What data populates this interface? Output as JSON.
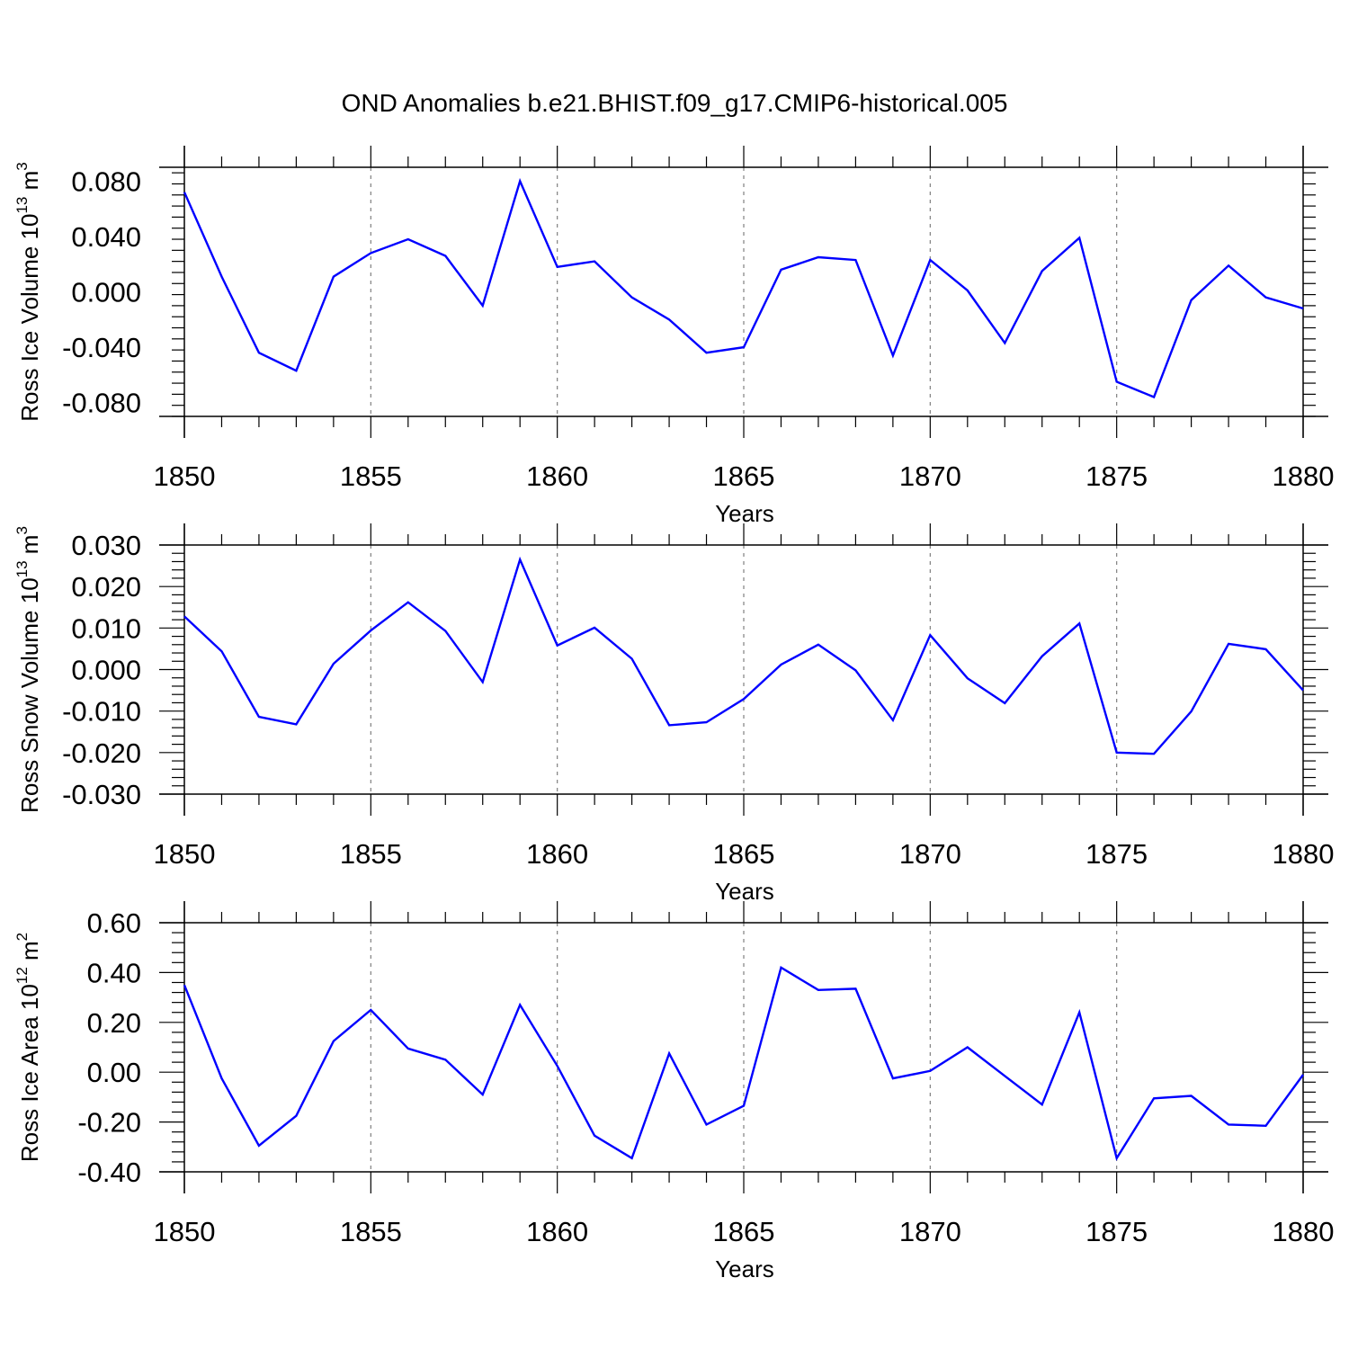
{
  "title": "OND Anomalies b.e21.BHIST.f09_g17.CMIP6-historical.005",
  "colors": {
    "line": "#0000ff",
    "axis": "#000000",
    "grid": "#808080"
  },
  "chart_data": [
    {
      "type": "line",
      "ylabel": {
        "text": "Ross Ice Volume 10",
        "sup": "13",
        "unit": " m",
        "unit_sup": "3"
      },
      "xlabel": "Years",
      "xlim": [
        1850,
        1880
      ],
      "ylim": [
        -0.09,
        0.09
      ],
      "yticks": [
        -0.08,
        -0.04,
        0.0,
        0.04,
        0.08
      ],
      "ytick_labels": [
        "-0.080",
        "-0.040",
        "0.000",
        "0.040",
        "0.080"
      ],
      "xticks": [
        1850,
        1855,
        1860,
        1865,
        1870,
        1875,
        1880
      ],
      "xtick_labels": [
        "1850",
        "1855",
        "1860",
        "1865",
        "1870",
        "1875",
        "1880"
      ],
      "x": [
        1850,
        1851,
        1852,
        1853,
        1854,
        1855,
        1856,
        1857,
        1858,
        1859,
        1860,
        1861,
        1862,
        1863,
        1864,
        1865,
        1866,
        1867,
        1868,
        1869,
        1870,
        1871,
        1872,
        1873,
        1874,
        1875,
        1876,
        1877,
        1878,
        1879,
        1880
      ],
      "values": [
        0.072,
        0.011,
        -0.044,
        -0.057,
        0.011,
        0.028,
        0.038,
        0.026,
        -0.01,
        0.08,
        0.018,
        0.022,
        -0.004,
        -0.02,
        -0.044,
        -0.04,
        0.016,
        0.025,
        0.023,
        -0.046,
        0.023,
        0.001,
        -0.037,
        0.015,
        0.039,
        -0.065,
        -0.076,
        -0.006,
        0.019,
        -0.004,
        -0.012
      ]
    },
    {
      "type": "line",
      "ylabel": {
        "text": "Ross Snow Volume 10",
        "sup": "13",
        "unit": " m",
        "unit_sup": "3"
      },
      "xlabel": "Years",
      "xlim": [
        1850,
        1880
      ],
      "ylim": [
        -0.03,
        0.03
      ],
      "yticks": [
        -0.03,
        -0.02,
        -0.01,
        0.0,
        0.01,
        0.02,
        0.03
      ],
      "ytick_labels": [
        "-0.030",
        "-0.020",
        "-0.010",
        "0.000",
        "0.010",
        "0.020",
        "0.030"
      ],
      "xticks": [
        1850,
        1855,
        1860,
        1865,
        1870,
        1875,
        1880
      ],
      "xtick_labels": [
        "1850",
        "1855",
        "1860",
        "1865",
        "1870",
        "1875",
        "1880"
      ],
      "x": [
        1850,
        1851,
        1852,
        1853,
        1854,
        1855,
        1856,
        1857,
        1858,
        1859,
        1860,
        1861,
        1862,
        1863,
        1864,
        1865,
        1866,
        1867,
        1868,
        1869,
        1870,
        1871,
        1872,
        1873,
        1874,
        1875,
        1876,
        1877,
        1878,
        1879,
        1880
      ],
      "values": [
        0.0128,
        0.0044,
        -0.0114,
        -0.0132,
        0.0014,
        0.0094,
        0.0162,
        0.0093,
        -0.003,
        0.0265,
        0.0058,
        0.0101,
        0.0026,
        -0.0134,
        -0.0127,
        -0.0071,
        0.0012,
        0.006,
        -0.0002,
        -0.0122,
        0.0083,
        -0.0021,
        -0.0081,
        0.0032,
        0.0111,
        -0.02,
        -0.0203,
        -0.0101,
        0.0062,
        0.0049,
        -0.005
      ]
    },
    {
      "type": "line",
      "ylabel": {
        "text": "Ross Ice Area 10",
        "sup": "12",
        "unit": " m",
        "unit_sup": "2"
      },
      "xlabel": "Years",
      "xlim": [
        1850,
        1880
      ],
      "ylim": [
        -0.4,
        0.6
      ],
      "yticks": [
        -0.4,
        -0.2,
        0.0,
        0.2,
        0.4,
        0.6
      ],
      "ytick_labels": [
        "-0.40",
        "-0.20",
        "0.00",
        "0.20",
        "0.40",
        "0.60"
      ],
      "xticks": [
        1850,
        1855,
        1860,
        1865,
        1870,
        1875,
        1880
      ],
      "xtick_labels": [
        "1850",
        "1855",
        "1860",
        "1865",
        "1870",
        "1875",
        "1880"
      ],
      "x": [
        1850,
        1851,
        1852,
        1853,
        1854,
        1855,
        1856,
        1857,
        1858,
        1859,
        1860,
        1861,
        1862,
        1863,
        1864,
        1865,
        1866,
        1867,
        1868,
        1869,
        1870,
        1871,
        1872,
        1873,
        1874,
        1875,
        1876,
        1877,
        1878,
        1879,
        1880
      ],
      "values": [
        0.35,
        -0.025,
        -0.295,
        -0.175,
        0.125,
        0.25,
        0.095,
        0.05,
        -0.09,
        0.27,
        0.025,
        -0.255,
        -0.345,
        0.075,
        -0.21,
        -0.135,
        0.42,
        0.33,
        0.335,
        -0.025,
        0.005,
        0.1,
        -0.015,
        -0.13,
        0.24,
        -0.345,
        -0.105,
        -0.095,
        -0.21,
        -0.215,
        -0.01
      ]
    }
  ]
}
